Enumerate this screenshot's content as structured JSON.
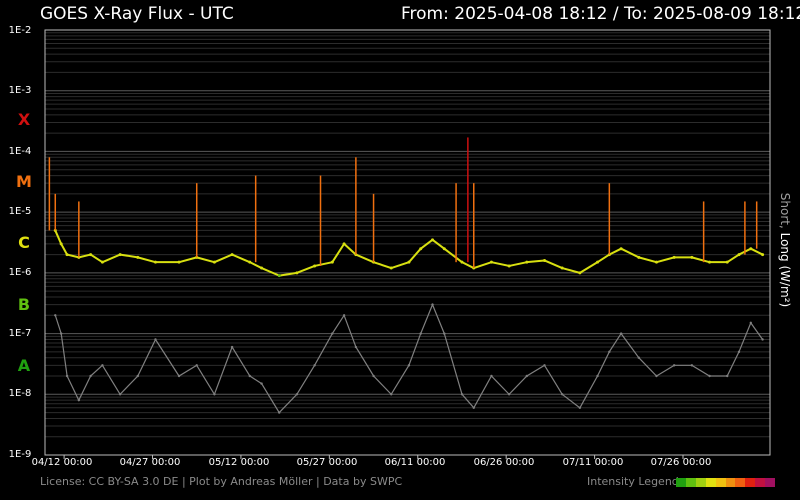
{
  "header": {
    "title": "GOES X-Ray Flux - UTC",
    "range": "From: 2025-04-08 18:12  /  To: 2025-08-09 18:12"
  },
  "y_axis": {
    "ticks": [
      "1E-2",
      "1E-3",
      "1E-4",
      "1E-5",
      "1E-6",
      "1E-7",
      "1E-8",
      "1E-9"
    ],
    "label_short": "Short,",
    "label_long": "Long (W/m²)"
  },
  "flare_classes": [
    {
      "label": "X",
      "color": "#d01010"
    },
    {
      "label": "M",
      "color": "#f07010"
    },
    {
      "label": "C",
      "color": "#e0e010"
    },
    {
      "label": "B",
      "color": "#60c010"
    },
    {
      "label": "A",
      "color": "#20a010"
    }
  ],
  "x_axis": {
    "ticks": [
      "04/12 00:00",
      "04/27 00:00",
      "05/12 00:00",
      "05/27 00:00",
      "06/11 00:00",
      "06/26 00:00",
      "07/11 00:00",
      "07/26 00:00"
    ]
  },
  "footer": {
    "license": "License: CC BY-SA 3.0 DE | Plot by Andreas Möller | Data by SWPC",
    "legend_label": "Intensity Legend",
    "legend_colors": [
      "#20a010",
      "#60c010",
      "#a0d010",
      "#e0e010",
      "#f0c010",
      "#f09010",
      "#f06010",
      "#e02010",
      "#c01040",
      "#a01060"
    ]
  },
  "chart_data": {
    "type": "line",
    "title": "GOES X-Ray Flux - UTC",
    "ylabel": "Short, Long (W/m²)",
    "y_scale": "log",
    "ylim": [
      1e-09,
      0.01
    ],
    "x_start": "2025-04-08 18:12",
    "x_end": "2025-08-09 18:12",
    "grid": true,
    "series": [
      {
        "name": "Long",
        "colors": "flare-class",
        "x": [
          "04/10",
          "04/11",
          "04/12",
          "04/14",
          "04/16",
          "04/18",
          "04/21",
          "04/24",
          "04/27",
          "05/01",
          "05/04",
          "05/07",
          "05/10",
          "05/13",
          "05/15",
          "05/18",
          "05/21",
          "05/24",
          "05/27",
          "05/29",
          "05/31",
          "06/03",
          "06/06",
          "06/09",
          "06/11",
          "06/13",
          "06/15",
          "06/18",
          "06/20",
          "06/23",
          "06/26",
          "06/29",
          "07/02",
          "07/05",
          "07/08",
          "07/11",
          "07/13",
          "07/15",
          "07/18",
          "07/21",
          "07/24",
          "07/27",
          "07/30",
          "08/02",
          "08/04",
          "08/06",
          "08/08"
        ],
        "values": [
          5e-06,
          3e-06,
          2e-06,
          1.8e-06,
          2e-06,
          1.5e-06,
          2e-06,
          1.8e-06,
          1.5e-06,
          1.5e-06,
          1.8e-06,
          1.5e-06,
          2e-06,
          1.5e-06,
          1.2e-06,
          9e-07,
          1e-06,
          1.3e-06,
          1.5e-06,
          3e-06,
          2e-06,
          1.5e-06,
          1.2e-06,
          1.5e-06,
          2.5e-06,
          3.5e-06,
          2.5e-06,
          1.5e-06,
          1.2e-06,
          1.5e-06,
          1.3e-06,
          1.5e-06,
          1.6e-06,
          1.2e-06,
          1e-06,
          1.5e-06,
          2e-06,
          2.5e-06,
          1.8e-06,
          1.5e-06,
          1.8e-06,
          1.8e-06,
          1.5e-06,
          1.5e-06,
          2e-06,
          2.5e-06,
          2e-06
        ]
      },
      {
        "name": "Short",
        "color": "#808080",
        "x": [
          "04/10",
          "04/11",
          "04/12",
          "04/14",
          "04/16",
          "04/18",
          "04/21",
          "04/24",
          "04/27",
          "05/01",
          "05/04",
          "05/07",
          "05/10",
          "05/13",
          "05/15",
          "05/18",
          "05/21",
          "05/24",
          "05/27",
          "05/29",
          "05/31",
          "06/03",
          "06/06",
          "06/09",
          "06/11",
          "06/13",
          "06/15",
          "06/18",
          "06/20",
          "06/23",
          "06/26",
          "06/29",
          "07/02",
          "07/05",
          "07/08",
          "07/11",
          "07/13",
          "07/15",
          "07/18",
          "07/21",
          "07/24",
          "07/27",
          "07/30",
          "08/02",
          "08/04",
          "08/06",
          "08/08"
        ],
        "values": [
          2e-07,
          1e-07,
          2e-08,
          8e-09,
          2e-08,
          3e-08,
          1e-08,
          2e-08,
          8e-08,
          2e-08,
          3e-08,
          1e-08,
          6e-08,
          2e-08,
          1.5e-08,
          5e-09,
          1e-08,
          3e-08,
          1e-07,
          2e-07,
          6e-08,
          2e-08,
          1e-08,
          3e-08,
          1e-07,
          3e-07,
          1e-07,
          1e-08,
          6e-09,
          2e-08,
          1e-08,
          2e-08,
          3e-08,
          1e-08,
          6e-09,
          2e-08,
          5e-08,
          1e-07,
          4e-08,
          2e-08,
          3e-08,
          3e-08,
          2e-08,
          2e-08,
          5e-08,
          1.5e-07,
          8e-08
        ]
      }
    ],
    "peaks": [
      {
        "x": "04/09",
        "value": 8e-05
      },
      {
        "x": "04/10",
        "value": 2e-05
      },
      {
        "x": "04/14",
        "value": 1.5e-05
      },
      {
        "x": "05/04",
        "value": 3e-05
      },
      {
        "x": "05/14",
        "value": 4e-05
      },
      {
        "x": "05/25",
        "value": 4e-05
      },
      {
        "x": "05/31",
        "value": 8e-05
      },
      {
        "x": "06/03",
        "value": 2e-05
      },
      {
        "x": "06/17",
        "value": 3e-05
      },
      {
        "x": "06/19",
        "value": 0.00017
      },
      {
        "x": "06/20",
        "value": 3e-05
      },
      {
        "x": "07/13",
        "value": 3e-05
      },
      {
        "x": "07/29",
        "value": 1.5e-05
      },
      {
        "x": "08/05",
        "value": 1.5e-05
      },
      {
        "x": "08/07",
        "value": 1.5e-05
      }
    ]
  }
}
